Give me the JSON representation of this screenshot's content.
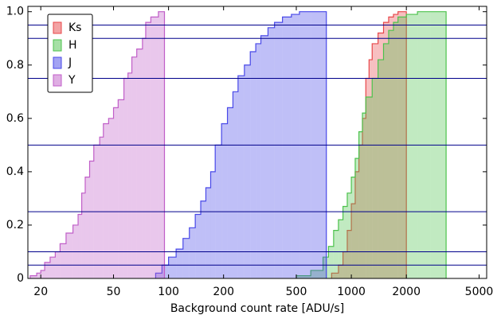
{
  "chart_data": {
    "type": "step-histogram",
    "x_label": "Background count rate [ADU/s]",
    "xscale": "log",
    "xlim": [
      17,
      5500
    ],
    "ylim": [
      0,
      1.02
    ],
    "xticks": [
      20,
      50,
      100,
      200,
      500,
      1000,
      2000,
      5000
    ],
    "yticks": [
      0,
      0.2,
      0.4,
      0.6,
      0.8,
      {
        "value": 1,
        "label": "1.0"
      }
    ],
    "hlines": [
      0.05,
      0.1,
      0.25,
      0.5,
      0.75,
      0.9,
      0.95
    ],
    "hline_color": "#00008b",
    "legend_loc": "upper left",
    "series": [
      {
        "name": "Ks",
        "color": "#e8474a",
        "bins": [
          780,
          850,
          900,
          950,
          1000,
          1050,
          1100,
          1150,
          1200,
          1250,
          1300,
          1400,
          1500,
          1600,
          1700,
          1800,
          2000
        ],
        "values": [
          0.02,
          0.05,
          0.1,
          0.18,
          0.28,
          0.4,
          0.5,
          0.6,
          0.75,
          0.82,
          0.88,
          0.92,
          0.96,
          0.98,
          0.99,
          1.0
        ]
      },
      {
        "name": "H",
        "color": "#4cc24c",
        "bins": [
          500,
          600,
          700,
          750,
          800,
          850,
          900,
          950,
          1000,
          1050,
          1100,
          1150,
          1200,
          1300,
          1400,
          1500,
          1600,
          1700,
          1800,
          2000,
          2300,
          2700,
          3300
        ],
        "values": [
          0.01,
          0.03,
          0.08,
          0.12,
          0.18,
          0.22,
          0.27,
          0.32,
          0.38,
          0.45,
          0.55,
          0.62,
          0.68,
          0.75,
          0.82,
          0.88,
          0.93,
          0.96,
          0.98,
          0.99,
          1.0,
          1.0
        ]
      },
      {
        "name": "J",
        "color": "#4848e8",
        "bins": [
          85,
          92,
          100,
          110,
          120,
          130,
          140,
          150,
          160,
          170,
          180,
          195,
          210,
          225,
          240,
          260,
          280,
          300,
          320,
          350,
          380,
          420,
          470,
          520,
          600,
          730
        ],
        "values": [
          0.02,
          0.05,
          0.08,
          0.11,
          0.15,
          0.19,
          0.24,
          0.29,
          0.34,
          0.4,
          0.5,
          0.58,
          0.64,
          0.7,
          0.76,
          0.8,
          0.85,
          0.88,
          0.91,
          0.94,
          0.96,
          0.98,
          0.99,
          1.0,
          1.0
        ]
      },
      {
        "name": "Y",
        "color": "#c05ec8",
        "bins": [
          17.5,
          19,
          20,
          21,
          22.5,
          24,
          25.5,
          27.5,
          30,
          32,
          33.5,
          35,
          37,
          39,
          42,
          44,
          47,
          50,
          53,
          57,
          60,
          63,
          67,
          72,
          75,
          80,
          88,
          95
        ],
        "values": [
          0.01,
          0.02,
          0.03,
          0.06,
          0.08,
          0.1,
          0.13,
          0.17,
          0.2,
          0.24,
          0.32,
          0.38,
          0.44,
          0.5,
          0.53,
          0.58,
          0.6,
          0.64,
          0.67,
          0.75,
          0.77,
          0.83,
          0.86,
          0.9,
          0.96,
          0.98,
          1.0
        ]
      }
    ]
  }
}
